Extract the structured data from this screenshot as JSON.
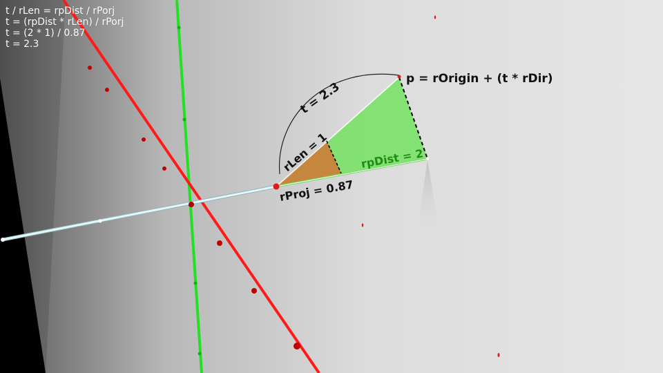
{
  "hud": {
    "lines": [
      "t / rLen = rpDist / rPorj",
      "t = (rpDist * rLen) / rPorj",
      "t = (2 * 1) / 0.87",
      "t = 2.3"
    ]
  },
  "labels": {
    "t_arc": "t = 2.3",
    "point_eq": "p = rOrigin + (t * rDir)",
    "rlen": "rLen = 1",
    "rpdist": "rpDist = 2",
    "rproj": "rProj = 0.87"
  },
  "colors": {
    "x_axis": "#ff1a1a",
    "y_axis": "#22e022",
    "ray": "#d8f4f7",
    "big_triangle": "#7ee26e",
    "small_triangle": "#c8823a",
    "rpdist_text": "#1e8f12",
    "label_text": "#111111"
  }
}
